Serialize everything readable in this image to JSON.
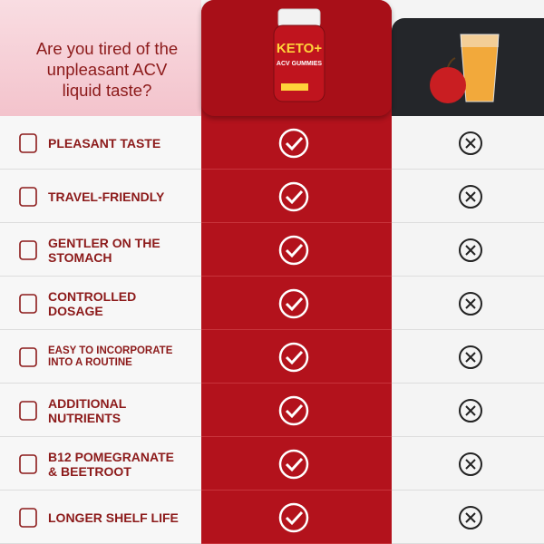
{
  "header": {
    "question": [
      "Are you tired of the",
      "unpleasant ACV",
      "liquid taste?"
    ],
    "product_brand": "KETO+",
    "product_name": "ACV GUMMIES"
  },
  "rows": [
    {
      "lines": [
        "PLEASANT TASTE"
      ]
    },
    {
      "lines": [
        "TRAVEL-FRIENDLY"
      ]
    },
    {
      "lines": [
        "GENTLER ON THE",
        "STOMACH"
      ]
    },
    {
      "lines": [
        "CONTROLLED",
        "DOSAGE"
      ]
    },
    {
      "lines": [
        "EASY TO INCORPORATE",
        "INTO A ROUTINE"
      ]
    },
    {
      "lines": [
        "ADDITIONAL",
        "NUTRIENTS"
      ]
    },
    {
      "lines": [
        "B12 POMEGRANATE",
        "& BEETROOT"
      ]
    },
    {
      "lines": [
        "LONGER SHELF LIFE"
      ]
    }
  ]
}
